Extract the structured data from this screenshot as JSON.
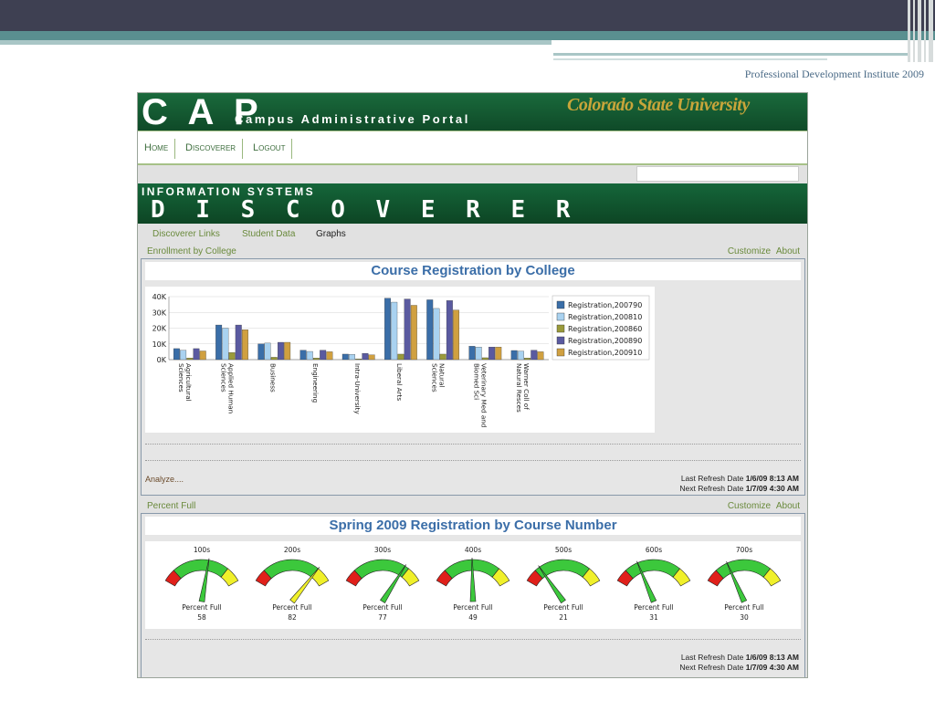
{
  "slide": {
    "footer_note": "Professional Development Institute 2009"
  },
  "header": {
    "title": "C A P",
    "subtitle": "Campus Administrative Portal",
    "university_logo": "Colorado State University"
  },
  "nav": {
    "items": [
      {
        "label": "Home"
      },
      {
        "label": "Discoverer"
      },
      {
        "label": "Logout"
      }
    ]
  },
  "banner": {
    "top_text": "INFORMATION SYSTEMS",
    "main_text": "D I S C O V E R E R"
  },
  "subnav": {
    "items": [
      {
        "label": "Discoverer Links"
      },
      {
        "label": "Student Data"
      },
      {
        "label": "Graphs"
      }
    ]
  },
  "enrollment": {
    "section_title": "Enrollment by College",
    "customize_label": "Customize",
    "about_label": "About",
    "analyze_label": "Analyze....",
    "last_refresh_label": "Last Refresh Date",
    "last_refresh_value": "1/6/09 8:13 AM",
    "next_refresh_label": "Next Refresh Date",
    "next_refresh_value": "1/7/09 4:30 AM"
  },
  "percent_full": {
    "section_title": "Percent Full",
    "customize_label": "Customize",
    "about_label": "About",
    "last_refresh_label": "Last Refresh Date",
    "last_refresh_value": "1/6/09 8:13 AM",
    "next_refresh_label": "Next Refresh Date",
    "next_refresh_value": "1/7/09 4:30 AM"
  },
  "colors": {
    "series": [
      "#3a6ea8",
      "#a9d2f0",
      "#9a9a3a",
      "#5a5aa0",
      "#d0a040"
    ],
    "gauge_red": "#e0201a",
    "gauge_green": "#3cc83c",
    "gauge_yellow": "#f0f02a"
  },
  "chart_data": [
    {
      "type": "bar",
      "title": "Course Registration by College",
      "categories": [
        "Agricultural Sciences",
        "Applied Human Sciences",
        "Business",
        "Engineering",
        "Intra-University",
        "Liberal Arts",
        "Natural Sciences",
        "Veterinary Med and Biomed Sci",
        "Warner Coll of Natural Resces"
      ],
      "y_tick_labels": [
        "0K",
        "10K",
        "20K",
        "30K",
        "40K"
      ],
      "ylim": [
        0,
        40000
      ],
      "legend_placement": "right",
      "series": [
        {
          "name": "Registration,200790",
          "values": [
            7000,
            22000,
            10000,
            6000,
            3500,
            39000,
            38000,
            8500,
            5800
          ]
        },
        {
          "name": "Registration,200810",
          "values": [
            6000,
            20000,
            10500,
            5200,
            3300,
            36500,
            32500,
            8000,
            5400
          ]
        },
        {
          "name": "Registration,200860",
          "values": [
            1000,
            4500,
            1500,
            1000,
            500,
            3500,
            3500,
            1200,
            1000
          ]
        },
        {
          "name": "Registration,200890",
          "values": [
            7000,
            22000,
            11000,
            6000,
            4000,
            38500,
            37500,
            8000,
            6000
          ]
        },
        {
          "name": "Registration,200910",
          "values": [
            5500,
            19000,
            11000,
            5000,
            3000,
            34500,
            31500,
            8000,
            5000
          ]
        }
      ]
    },
    {
      "type": "gauge",
      "title": "Spring 2009 Registration by Course Number",
      "value_label": "Percent Full",
      "range": [
        0,
        100
      ],
      "gauges": [
        {
          "label": "100s",
          "value": 58
        },
        {
          "label": "200s",
          "value": 82
        },
        {
          "label": "300s",
          "value": 77
        },
        {
          "label": "400s",
          "value": 49
        },
        {
          "label": "500s",
          "value": 21
        },
        {
          "label": "600s",
          "value": 31
        },
        {
          "label": "700s",
          "value": 30
        }
      ]
    }
  ]
}
